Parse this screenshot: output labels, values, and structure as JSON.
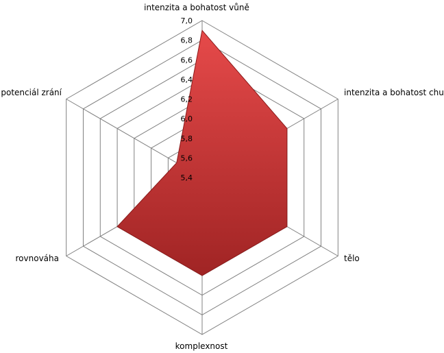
{
  "chart_data": {
    "type": "radar",
    "title": "",
    "categories": [
      "intenzita a bohatost vůně",
      "intenzita a bohatost chuti",
      "tělo",
      "komplexnost",
      "rovnováha",
      "potenciál zrání"
    ],
    "series": [
      {
        "values": [
          6.9,
          6.4,
          6.4,
          6.4,
          6.4,
          5.7
        ]
      }
    ],
    "rlim": [
      5.4,
      7.0
    ],
    "ticks": [
      "5,4",
      "5,6",
      "5,8",
      "6,0",
      "6,2",
      "6,4",
      "6,6",
      "6,8",
      "7,0"
    ],
    "tick_values": [
      5.4,
      5.6,
      5.8,
      6.0,
      6.2,
      6.4,
      6.6,
      6.8,
      7.0
    ],
    "grid": true,
    "legend": "none",
    "colors": {
      "fill_light": "#e64a4a",
      "fill_dark": "#a02424",
      "stroke": "#8a1a1a",
      "grid": "#808080"
    }
  }
}
